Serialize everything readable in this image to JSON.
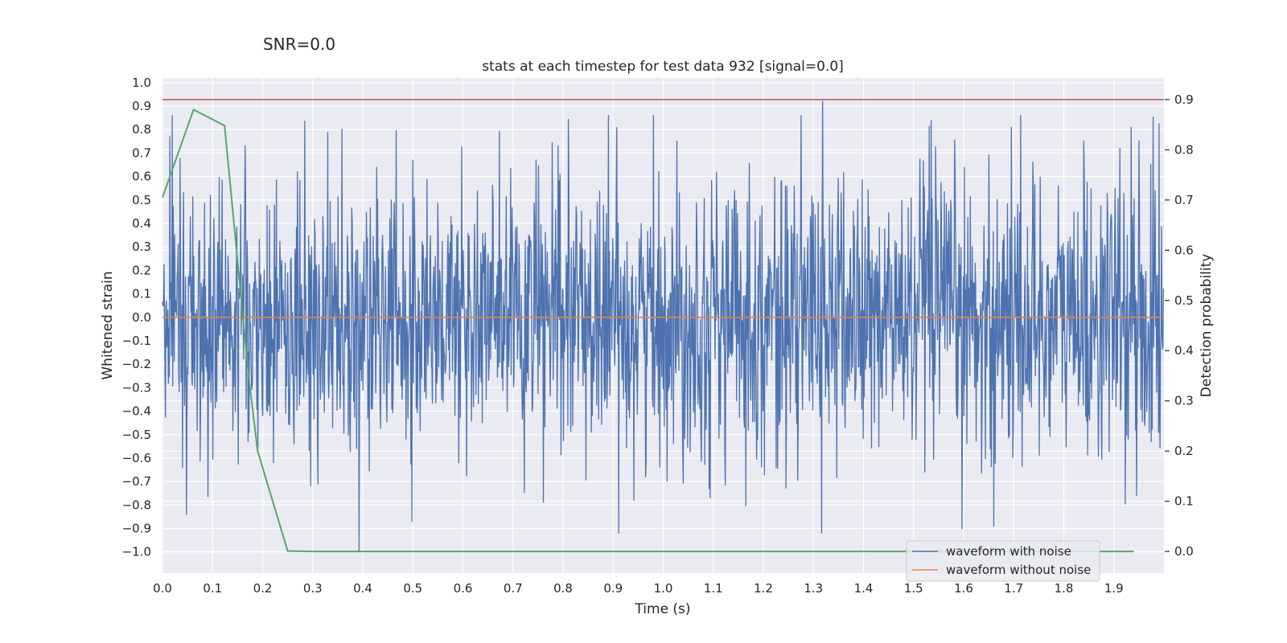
{
  "figure": {
    "suptitle": "SNR=0.0",
    "title": "stats at each timestep for test data 932 [signal=0.0]"
  },
  "chart_data": {
    "type": "line",
    "title": "stats at each timestep for test data 932 [signal=0.0]",
    "xlabel": "Time (s)",
    "ylabel": "Whitened strain",
    "y2label": "Detection probability",
    "xlim": [
      0.0,
      2.0
    ],
    "ylim": [
      -1.09,
      1.02
    ],
    "y2lim": [
      -0.043,
      0.943
    ],
    "x_ticks": [
      "0.0",
      "0.1",
      "0.2",
      "0.3",
      "0.4",
      "0.5",
      "0.6",
      "0.7",
      "0.8",
      "0.9",
      "1.0",
      "1.1",
      "1.2",
      "1.3",
      "1.4",
      "1.5",
      "1.6",
      "1.7",
      "1.8",
      "1.9"
    ],
    "y_ticks": [
      "1.0",
      "0.9",
      "0.8",
      "0.7",
      "0.6",
      "0.5",
      "0.4",
      "0.3",
      "0.2",
      "0.1",
      "0.0",
      "−0.1",
      "−0.2",
      "−0.3",
      "−0.4",
      "−0.5",
      "−0.6",
      "−0.7",
      "−0.8",
      "−0.9",
      "−1.0"
    ],
    "y2_ticks": [
      "0.9",
      "0.8",
      "0.7",
      "0.6",
      "0.5",
      "0.4",
      "0.3",
      "0.2",
      "0.1",
      "0.0"
    ],
    "grid": true,
    "legend_position": "lower-right",
    "colors": {
      "noise": "#4c72b0",
      "clean": "#dd8452",
      "probability": "#55a868",
      "threshold": "#c44e52",
      "axes_bg": "#eaeaf2",
      "grid": "#ffffff"
    },
    "series": [
      {
        "name": "waveform with noise",
        "axis": "left",
        "kind": "noise",
        "n_points": 2048,
        "approx_std": 0.3,
        "notable_peaks": [
          {
            "x": 0.015,
            "y": 0.77
          },
          {
            "x": 0.048,
            "y": -0.84
          },
          {
            "x": 0.165,
            "y": 0.73
          },
          {
            "x": 0.393,
            "y": -1.0
          },
          {
            "x": 0.498,
            "y": -0.87
          },
          {
            "x": 1.318,
            "y": 0.92
          },
          {
            "x": 1.535,
            "y": 0.84
          },
          {
            "x": 1.66,
            "y": -0.89
          },
          {
            "x": 1.695,
            "y": 0.81
          },
          {
            "x": 1.935,
            "y": 0.81
          },
          {
            "x": 1.945,
            "y": -0.76
          }
        ]
      },
      {
        "name": "waveform without noise",
        "axis": "left",
        "x": [
          0.0,
          2.0
        ],
        "y": [
          0.0,
          0.0
        ]
      },
      {
        "name": "",
        "axis": "right",
        "x": [
          0.0,
          0.062,
          0.124,
          0.172,
          0.19,
          0.25,
          0.3,
          1.94
        ],
        "y": [
          0.705,
          0.88,
          0.848,
          0.35,
          0.2,
          0.001,
          0.0,
          0.0
        ]
      },
      {
        "name": "",
        "axis": "right",
        "kind": "hline",
        "y": 0.9
      }
    ]
  }
}
